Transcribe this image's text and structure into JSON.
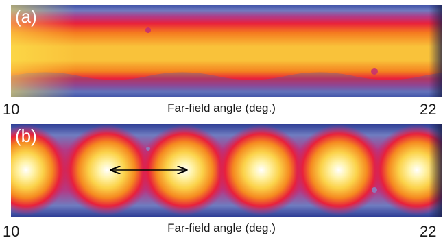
{
  "panels": [
    {
      "label": "(a)"
    },
    {
      "label": "(b)"
    }
  ],
  "axis": {
    "xlabel": "Far-field angle (deg.)",
    "xmin": "10",
    "xmax": "22"
  },
  "colormap": [
    "#1b1f4a",
    "#3a4fa8",
    "#8a7fc0",
    "#c0287a",
    "#e81e3c",
    "#f06a1e",
    "#f7b020",
    "#fde650",
    "#ffffff"
  ]
}
